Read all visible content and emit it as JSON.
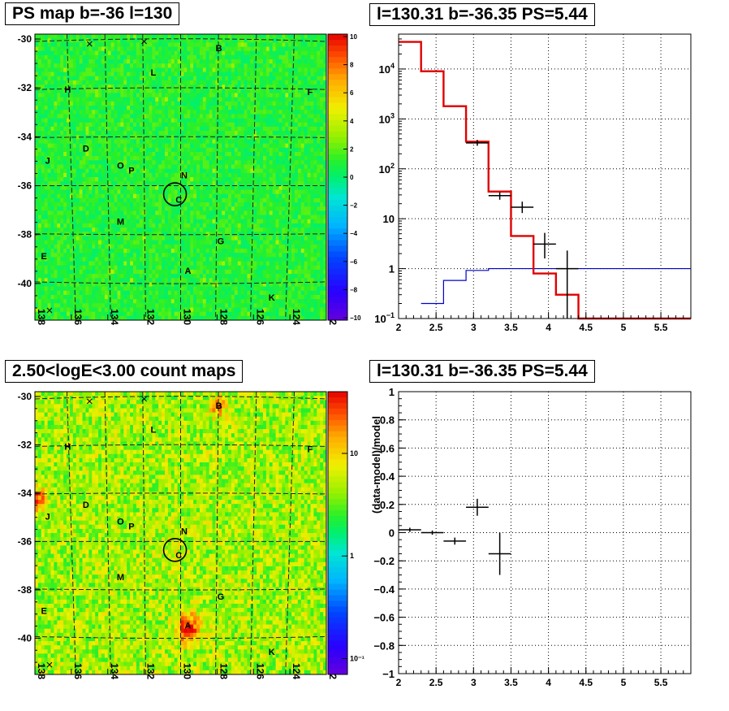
{
  "panels": {
    "tl": {
      "title": "PS map b=-36 l=130",
      "b_ticks": [
        "-30",
        "-32",
        "-34",
        "-36",
        "-38",
        "-40"
      ],
      "l_ticks": [
        "138",
        "136",
        "134",
        "132",
        "130",
        "128",
        "126",
        "124",
        "122"
      ],
      "colorbar_ticks": [
        "10",
        "8",
        "6",
        "4",
        "2",
        "0",
        "−2",
        "−4",
        "−6",
        "−8",
        "−10"
      ],
      "source_labels": [
        "B",
        "L",
        "H",
        "F",
        "D",
        "J",
        "O",
        "P",
        "N",
        "C",
        "M",
        "G",
        "E",
        "A",
        "K"
      ]
    },
    "tr": {
      "title": "l=130.31 b=-36.35 PS=5.44",
      "y_ticks": [
        "10¹",
        "10³",
        "10²",
        "10",
        "1",
        "10⁻¹"
      ],
      "x_ticks": [
        "2",
        "2.5",
        "3",
        "3.5",
        "4",
        "4.5",
        "5",
        "5.5"
      ]
    },
    "bl": {
      "title": "2.50<logE<3.00 count maps",
      "b_ticks": [
        "-30",
        "-32",
        "-34",
        "-36",
        "-38",
        "-40"
      ],
      "l_ticks": [
        "138",
        "136",
        "134",
        "132",
        "130",
        "128",
        "126",
        "124",
        "122"
      ],
      "colorbar_ticks": [
        "10",
        "1",
        "10⁻¹"
      ],
      "source_labels": [
        "B",
        "L",
        "H",
        "F",
        "D",
        "J",
        "O",
        "P",
        "N",
        "C",
        "M",
        "G",
        "E",
        "A",
        "K"
      ]
    },
    "br": {
      "title": "l=130.31 b=-36.35 PS=5.44",
      "ylabel": "(data-model)/model",
      "y_ticks": [
        "1",
        "0.8",
        "0.6",
        "0.4",
        "0.2",
        "0",
        "−0.2",
        "−0.4",
        "−0.6",
        "−0.8",
        "−1"
      ],
      "x_ticks": [
        "2",
        "2.5",
        "3",
        "3.5",
        "4",
        "4.5",
        "5",
        "5.5"
      ]
    }
  },
  "chart_data": [
    {
      "type": "heatmap",
      "title": "PS map b=-36 l=130",
      "xlabel": "",
      "ylabel": "",
      "xlim": [
        138,
        122
      ],
      "ylim": [
        -41.5,
        -29.8
      ],
      "color_range": [
        -10,
        10
      ],
      "sources": [
        {
          "label": "B",
          "l": 127.9,
          "b": -30.5
        },
        {
          "label": "L",
          "l": 131.5,
          "b": -31.5
        },
        {
          "label": "H",
          "l": 136.2,
          "b": -32.2
        },
        {
          "label": "F",
          "l": 122.9,
          "b": -32.3
        },
        {
          "label": "D",
          "l": 135.2,
          "b": -34.6
        },
        {
          "label": "J",
          "l": 137.3,
          "b": -35.1
        },
        {
          "label": "O",
          "l": 133.3,
          "b": -35.3
        },
        {
          "label": "P",
          "l": 132.7,
          "b": -35.5
        },
        {
          "label": "N",
          "l": 129.8,
          "b": -35.7
        },
        {
          "label": "C",
          "l": 130.1,
          "b": -36.7
        },
        {
          "label": "M",
          "l": 133.3,
          "b": -37.6
        },
        {
          "label": "G",
          "l": 127.8,
          "b": -38.4
        },
        {
          "label": "E",
          "l": 137.5,
          "b": -39.0
        },
        {
          "label": "A",
          "l": 129.6,
          "b": -39.6
        },
        {
          "label": "K",
          "l": 125.0,
          "b": -40.7
        }
      ],
      "target": {
        "l": 130.31,
        "b": -36.35
      }
    },
    {
      "type": "line",
      "title": "l=130.31 b=-36.35 PS=5.44",
      "xlabel": "",
      "ylabel": "",
      "xlim": [
        2,
        5.9
      ],
      "ylim": [
        0.1,
        50000
      ],
      "yscale": "log",
      "grid": true,
      "series": [
        {
          "color": "#e00000",
          "bin_edges": [
            2.0,
            2.3,
            2.6,
            2.9,
            3.2,
            3.5,
            3.8,
            4.1,
            4.4,
            5.9
          ],
          "values": [
            35000,
            9000,
            1800,
            350,
            35,
            4.5,
            0.8,
            0.3,
            0.1
          ]
        },
        {
          "color": "#0000cc",
          "bin_edges": [
            2.3,
            2.6,
            2.9,
            3.2,
            3.5,
            3.8,
            4.1,
            4.4,
            5.9
          ],
          "values": [
            0.2,
            0.58,
            0.92,
            1.0,
            1.0,
            1.0,
            1.0,
            1.0
          ]
        },
        {
          "color": "#000000",
          "points": [
            {
              "x": 3.05,
              "y": 330,
              "xerr": 0.15,
              "ylo": 290,
              "yhi": 380
            },
            {
              "x": 3.35,
              "y": 29,
              "xerr": 0.15,
              "ylo": 24,
              "yhi": 34
            },
            {
              "x": 3.65,
              "y": 17,
              "xerr": 0.15,
              "ylo": 13,
              "yhi": 22
            },
            {
              "x": 3.95,
              "y": 3.1,
              "xerr": 0.15,
              "ylo": 1.6,
              "yhi": 5.2
            },
            {
              "x": 4.25,
              "y": 1.0,
              "xerr": 0.15,
              "ylo": 0.1,
              "yhi": 2.3
            }
          ]
        }
      ]
    },
    {
      "type": "heatmap",
      "title": "2.50<logE<3.00 count maps",
      "xlabel": "",
      "ylabel": "",
      "xlim": [
        138,
        122
      ],
      "ylim": [
        -41.5,
        -29.8
      ],
      "color_scale": "log",
      "color_range": [
        0.07,
        40
      ]
    },
    {
      "type": "scatter",
      "title": "l=130.31 b=-36.35 PS=5.44",
      "xlabel": "",
      "ylabel": "(data-model)/model",
      "xlim": [
        2,
        5.9
      ],
      "ylim": [
        -1,
        1
      ],
      "grid": true,
      "points": [
        {
          "x": 2.15,
          "y": 0.02,
          "xerr": 0.15,
          "yerr": 0.015
        },
        {
          "x": 2.45,
          "y": 0.0,
          "xerr": 0.15,
          "yerr": 0.015
        },
        {
          "x": 2.75,
          "y": -0.06,
          "xerr": 0.15,
          "yerr": 0.025
        },
        {
          "x": 3.05,
          "y": 0.18,
          "xerr": 0.15,
          "yerr": 0.06
        },
        {
          "x": 3.35,
          "y": -0.15,
          "xerr": 0.15,
          "yerr": 0.15
        }
      ]
    }
  ]
}
